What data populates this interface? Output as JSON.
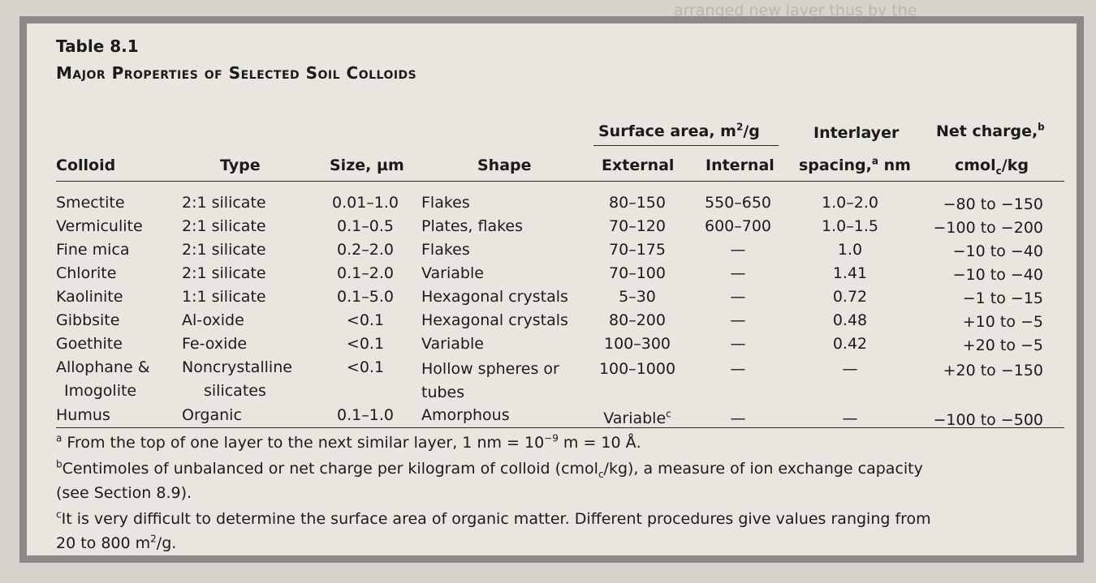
{
  "table": {
    "number": "Table 8.1",
    "title": "Major Properties of Selected Soil Colloids",
    "headers": {
      "colloid": "Colloid",
      "type": "Type",
      "size": "Size, µm",
      "shape": "Shape",
      "surface_area": "Surface area, m",
      "surface_area_sup": "2",
      "surface_area_unit": "/g",
      "external": "External",
      "internal": "Internal",
      "interlayer_1": "Interlayer",
      "interlayer_2": "spacing,",
      "interlayer_2_sup": "a",
      "interlayer_2_unit": " nm",
      "netcharge_1": "Net charge,",
      "netcharge_1_sup": "b",
      "netcharge_2a": "cmol",
      "netcharge_2_sub": "c",
      "netcharge_2b": "/kg"
    },
    "rows": [
      {
        "colloid": "Smectite",
        "type": "2:1 silicate",
        "size": "0.01–1.0",
        "shape": "Flakes",
        "external": "80–150",
        "internal": "550–650",
        "spacing": "1.0–2.0",
        "net_charge": "−80 to −150"
      },
      {
        "colloid": "Vermiculite",
        "type": "2:1 silicate",
        "size": "0.1–0.5",
        "shape": "Plates, flakes",
        "external": "70–120",
        "internal": "600–700",
        "spacing": "1.0–1.5",
        "net_charge": "−100 to −200"
      },
      {
        "colloid": "Fine mica",
        "type": "2:1 silicate",
        "size": "0.2–2.0",
        "shape": "Flakes",
        "external": "70–175",
        "internal": "—",
        "spacing": "1.0",
        "net_charge": "−10 to −40"
      },
      {
        "colloid": "Chlorite",
        "type": "2:1 silicate",
        "size": "0.1–2.0",
        "shape": "Variable",
        "external": "70–100",
        "internal": "—",
        "spacing": "1.41",
        "net_charge": "−10 to −40"
      },
      {
        "colloid": "Kaolinite",
        "type": "1:1 silicate",
        "size": "0.1–5.0",
        "shape": "Hexagonal crystals",
        "external": "5–30",
        "internal": "—",
        "spacing": "0.72",
        "net_charge": "−1 to −15"
      },
      {
        "colloid": "Gibbsite",
        "type": "Al-oxide",
        "size": "<0.1",
        "shape": "Hexagonal crystals",
        "external": "80–200",
        "internal": "—",
        "spacing": "0.48",
        "net_charge": "+10 to −5"
      },
      {
        "colloid": "Goethite",
        "type": "Fe-oxide",
        "size": "<0.1",
        "shape": "Variable",
        "external": "100–300",
        "internal": "—",
        "spacing": "0.42",
        "net_charge": "+20 to −5"
      },
      {
        "colloid": "Allophane &",
        "colloid_2": "Imogolite",
        "type": "Noncrystalline",
        "type_2": "silicates",
        "size": "<0.1",
        "shape": "Hollow spheres or",
        "shape_2": "tubes",
        "external": "100–1000",
        "internal": "—",
        "spacing": "—",
        "net_charge": "+20 to −150"
      },
      {
        "colloid": "Humus",
        "type": "Organic",
        "size": "0.1–1.0",
        "shape": "Amorphous",
        "external": "Variable",
        "external_sup": "c",
        "internal": "—",
        "spacing": "—",
        "net_charge": "−100 to −500"
      }
    ],
    "footnotes": {
      "a_mark": "a",
      "a_text": " From the top of one layer to the next similar layer, 1 nm = 10",
      "a_exp": "−9",
      "a_text_end": " m = 10 Å.",
      "b_mark": "b",
      "b_text": "Centimoles of unbalanced or net charge per kilogram of colloid (cmol",
      "b_sub": "c",
      "b_text_end": "/kg), a measure of ion exchange capacity",
      "b_line2": "(see Section 8.9).",
      "c_mark": "c",
      "c_text": "It is very difficult to determine the surface area of organic matter. Different procedures give values ranging from",
      "c_line2": "20 to 800 m",
      "c_line2_sup": "2",
      "c_line2_end": "/g."
    }
  }
}
